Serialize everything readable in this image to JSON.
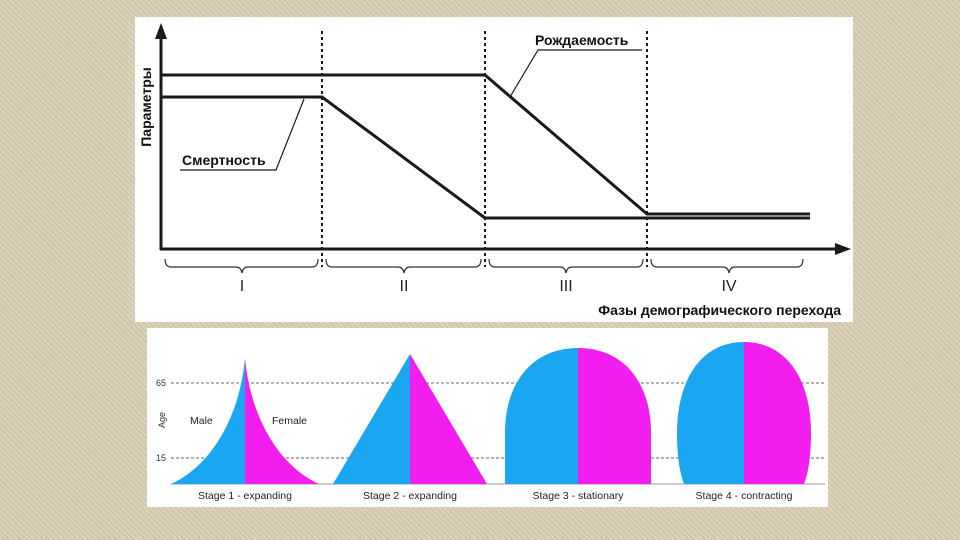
{
  "transition_chart": {
    "ylabel": "Параметры",
    "xlabel": "Фазы демографического перехода",
    "birth_rate_label": "Рождаемость",
    "death_rate_label": "Смертность",
    "phases": [
      "I",
      "II",
      "III",
      "IV"
    ]
  },
  "pyramids": {
    "age_label": "Age",
    "age_ticks": [
      "65",
      "15"
    ],
    "male_label": "Male",
    "female_label": "Female",
    "stages": [
      "Stage 1 - expanding",
      "Stage 2 - expanding",
      "Stage 3 - stationary",
      "Stage 4 - contracting"
    ]
  },
  "colors": {
    "male": "#1aa6f0",
    "female": "#f21ef0",
    "line": "#1a1a1a"
  }
}
